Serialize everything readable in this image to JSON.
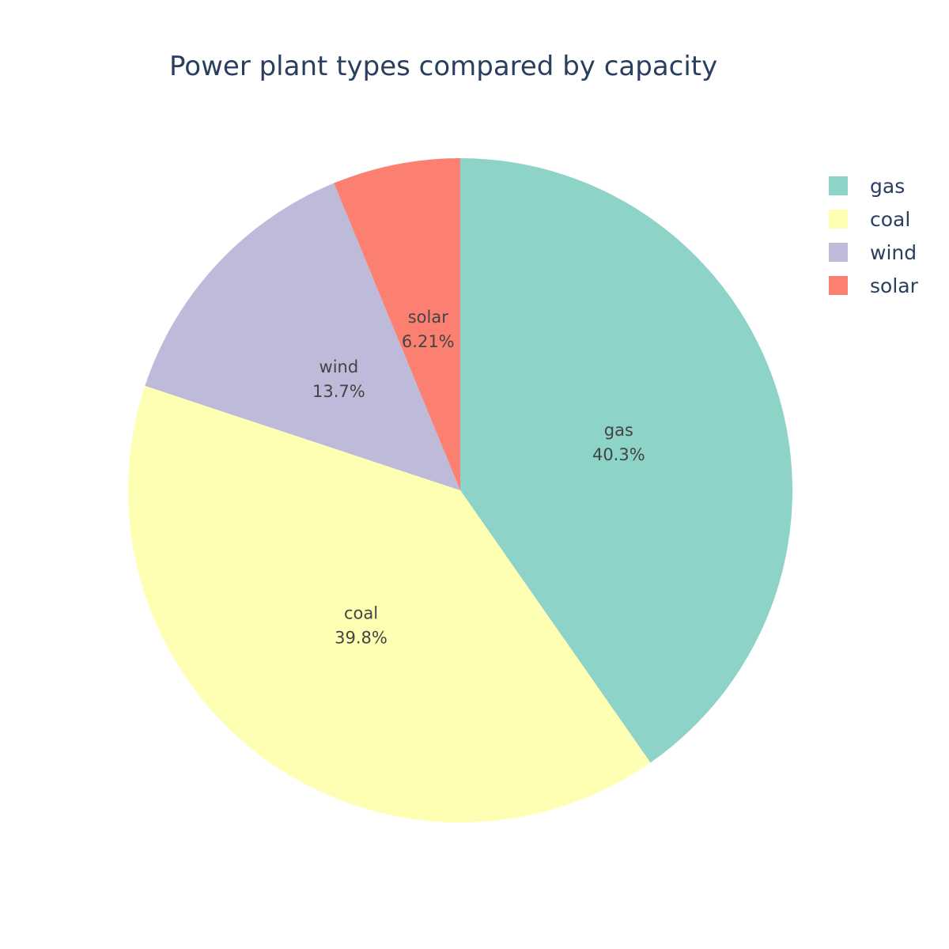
{
  "chart_data": {
    "type": "pie",
    "title": "Power plant types compared by capacity",
    "categories": [
      "gas",
      "coal",
      "wind",
      "solar"
    ],
    "values": [
      40.3,
      39.8,
      13.7,
      6.21
    ],
    "percent_labels": [
      "40.3%",
      "39.8%",
      "13.7%",
      "6.21%"
    ],
    "colors": [
      "#8dd3c7",
      "#ffffb3",
      "#bebada",
      "#fb8072"
    ],
    "legend": {
      "placement": "top-right",
      "items": [
        {
          "label": "gas",
          "color": "#8dd3c7"
        },
        {
          "label": "coal",
          "color": "#ffffb3"
        },
        {
          "label": "wind",
          "color": "#bebada"
        },
        {
          "label": "solar",
          "color": "#fb8072"
        }
      ]
    }
  }
}
